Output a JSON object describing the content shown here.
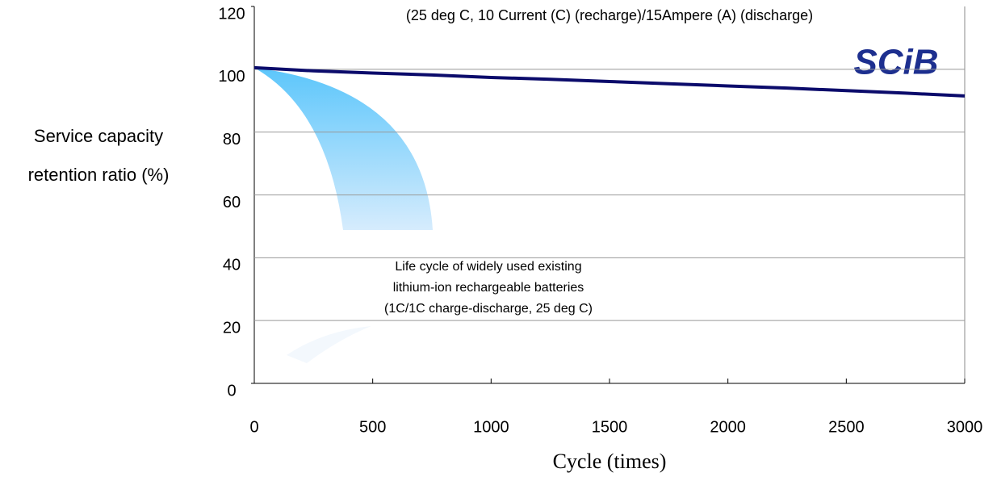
{
  "chart_data": {
    "type": "line",
    "annotation": "(25 deg C, 10 Current (C) (recharge)/15Ampere (A) (discharge)",
    "logo": "SCiB",
    "note": [
      "Life cycle of widely used existing",
      "lithium-ion rechargeable batteries",
      "(1C/1C charge-discharge, 25 deg C)"
    ],
    "ylabel": [
      "Service capacity",
      "retention ratio (%)"
    ],
    "xlabel": "Cycle (times)",
    "x": [
      0,
      250,
      500,
      750,
      1000,
      1250,
      1500,
      1750,
      2000,
      2250,
      2500,
      2750,
      3000
    ],
    "series": [
      {
        "name": null,
        "color": "#0b0b6b",
        "values": [
          100.5,
          99.5,
          98.8,
          98.2,
          97.4,
          96.8,
          96.1,
          95.4,
          94.7,
          94.0,
          93.2,
          92.4,
          91.5
        ]
      }
    ],
    "xlim": [
      0,
      3000
    ],
    "xticks": [
      0,
      500,
      1000,
      1500,
      2000,
      2500,
      3000
    ],
    "ylim": [
      0,
      120
    ],
    "yticks": [
      0,
      20,
      40,
      60,
      80,
      100,
      120
    ],
    "grid": true
  }
}
